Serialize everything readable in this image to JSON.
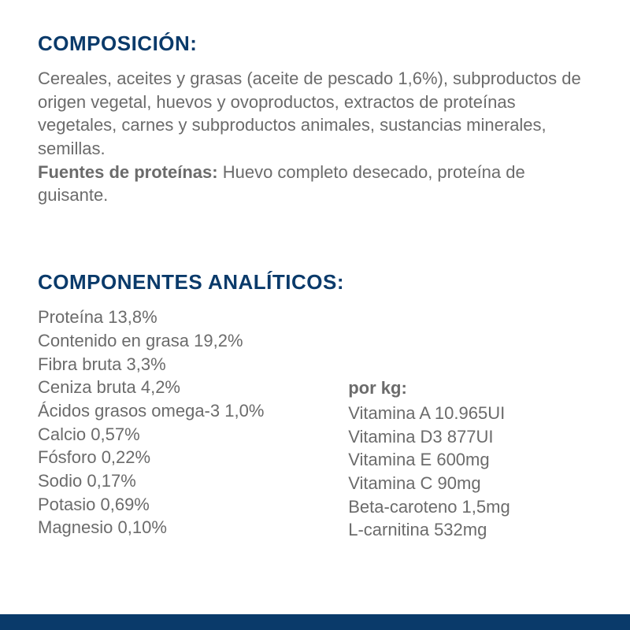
{
  "colors": {
    "heading": "#0a3a6a",
    "body": "#6b6b6b",
    "boldBody": "#6b6b6b",
    "bottomBar": "#0a3a6a",
    "background": "#ffffff"
  },
  "typography": {
    "heading_fontsize": 26,
    "body_fontsize": 22
  },
  "section1": {
    "title": "COMPOSICIÓN:",
    "paragraph": "Cereales, aceites y grasas (aceite de pescado 1,6%), subproductos de origen vegetal, huevos y ovoproductos, extractos de proteínas vegetales, carnes y subproductos animales, sustancias minerales, semillas.",
    "protein_label": "Fuentes de proteínas:",
    "protein_text": " Huevo completo desecado, proteína de guisante."
  },
  "section2": {
    "title": "COMPONENTES ANALÍTICOS:",
    "left_items": [
      "Proteína 13,8%",
      "Contenido en grasa 19,2%",
      "Fibra bruta 3,3%",
      "Ceniza bruta 4,2%",
      "Ácidos grasos omega-3 1,0%",
      "Calcio 0,57%",
      "Fósforo 0,22%",
      "Sodio 0,17%",
      "Potasio 0,69%",
      "Magnesio 0,10%"
    ],
    "per_kg_label": "por kg:",
    "right_items": [
      "Vitamina A 10.965UI",
      "Vitamina D3 877UI",
      "Vitamina E 600mg",
      "Vitamina C 90mg",
      "Beta-caroteno 1,5mg",
      "L-carnitina 532mg"
    ]
  }
}
